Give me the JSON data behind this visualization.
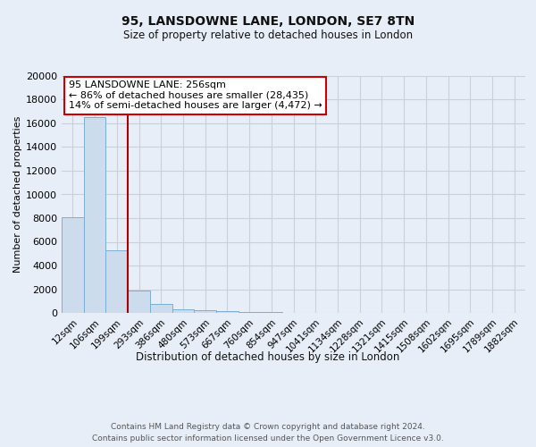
{
  "title": "95, LANSDOWNE LANE, LONDON, SE7 8TN",
  "subtitle": "Size of property relative to detached houses in London",
  "xlabel": "Distribution of detached houses by size in London",
  "ylabel": "Number of detached properties",
  "bar_labels": [
    "12sqm",
    "106sqm",
    "199sqm",
    "293sqm",
    "386sqm",
    "480sqm",
    "573sqm",
    "667sqm",
    "760sqm",
    "854sqm",
    "947sqm",
    "1041sqm",
    "1134sqm",
    "1228sqm",
    "1321sqm",
    "1415sqm",
    "1508sqm",
    "1602sqm",
    "1695sqm",
    "1789sqm",
    "1882sqm"
  ],
  "bar_values": [
    8100,
    16500,
    5300,
    1850,
    750,
    320,
    200,
    150,
    100,
    70,
    0,
    0,
    0,
    0,
    0,
    0,
    0,
    0,
    0,
    0,
    0
  ],
  "bar_color": "#ccdcec",
  "bar_edge_color": "#7aaed4",
  "annotation_title": "95 LANSDOWNE LANE: 256sqm",
  "annotation_line1": "← 86% of detached houses are smaller (28,435)",
  "annotation_line2": "14% of semi-detached houses are larger (4,472) →",
  "annotation_box_facecolor": "#ffffff",
  "annotation_box_edgecolor": "#cc0000",
  "red_line_color": "#aa0000",
  "ylim": [
    0,
    20000
  ],
  "yticks": [
    0,
    2000,
    4000,
    6000,
    8000,
    10000,
    12000,
    14000,
    16000,
    18000,
    20000
  ],
  "grid_color": "#c8d0dc",
  "bg_color": "#e8eef8",
  "plot_bg_color": "#e8eef8",
  "footer1": "Contains HM Land Registry data © Crown copyright and database right 2024.",
  "footer2": "Contains public sector information licensed under the Open Government Licence v3.0."
}
